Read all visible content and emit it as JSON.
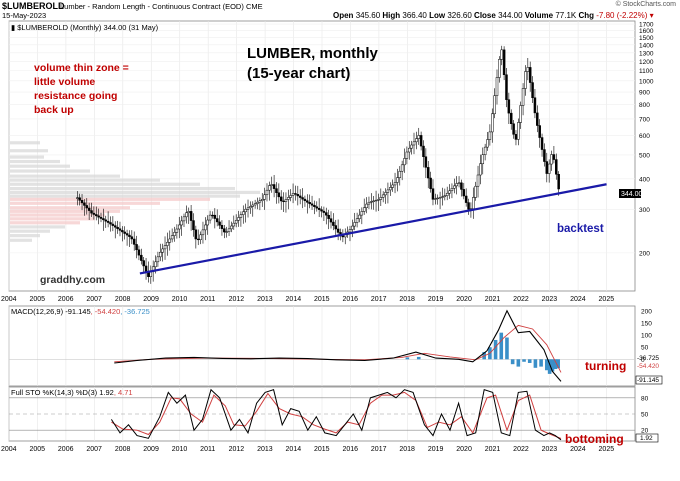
{
  "header": {
    "symbol": "$LUMBEROLD",
    "name": "Lumber - Random Length - Continuous Contract (EOD)",
    "exchange": "CME",
    "date": "15-May-2023",
    "legend": "$LUMBEROLD (Monthly) 344.00 (31 May)",
    "open_label": "Open",
    "open": "345.60",
    "high_label": "High",
    "high": "366.40",
    "low_label": "Low",
    "low": "326.60",
    "close_label": "Close",
    "close": "344.00",
    "volume_label": "Volume",
    "volume": "77.1K",
    "chg_label": "Chg",
    "chg": "-7.80 (-2.22%)",
    "site": "© StockCharts.com"
  },
  "annotations": {
    "title_line1": "LUMBER, monthly",
    "title_line2": "(15-year chart)",
    "volume_note": [
      "volume thin zone =",
      "little volume",
      "resistance going",
      "back up"
    ],
    "backtest": "backtest",
    "watermark": "graddhy.com",
    "turning": "turning",
    "bottoming": "bottoming"
  },
  "colors": {
    "trendline": "#1a1aa8",
    "annotation_red": "#c00000",
    "macd": "#000000",
    "signal": "#d04040",
    "histogram": "#3a8fc8",
    "stoch_k": "#000000",
    "stoch_d": "#d04040"
  },
  "chart_data": [
    {
      "type": "candlestick",
      "title": "$LUMBEROLD (Monthly) 344.00 (31 May)",
      "scale": "log",
      "ylim": [
        140,
        1750
      ],
      "yticks": [
        200,
        300,
        400,
        500,
        600,
        700,
        800,
        900,
        1000,
        1100,
        1200,
        1300,
        1400,
        1500,
        1600,
        1700
      ],
      "xticks": [
        "2004",
        "2005",
        "2006",
        "2007",
        "2008",
        "2009",
        "2010",
        "2011",
        "2012",
        "2013",
        "2014",
        "2015",
        "2016",
        "2017",
        "2018",
        "2019",
        "2020",
        "2021",
        "2022",
        "2023",
        "2024",
        "2025"
      ],
      "last_value_label": "344.00",
      "series_path": [
        [
          2006.4,
          335
        ],
        [
          2006.9,
          290
        ],
        [
          2007.5,
          265
        ],
        [
          2008.3,
          230
        ],
        [
          2008.9,
          160
        ],
        [
          2009.3,
          200
        ],
        [
          2009.9,
          250
        ],
        [
          2010.3,
          300
        ],
        [
          2010.6,
          220
        ],
        [
          2011.1,
          290
        ],
        [
          2011.6,
          240
        ],
        [
          2012.3,
          300
        ],
        [
          2012.9,
          330
        ],
        [
          2013.2,
          385
        ],
        [
          2013.6,
          320
        ],
        [
          2014.0,
          350
        ],
        [
          2014.5,
          320
        ],
        [
          2015.1,
          290
        ],
        [
          2015.7,
          230
        ],
        [
          2016.0,
          250
        ],
        [
          2016.6,
          320
        ],
        [
          2017.0,
          330
        ],
        [
          2017.6,
          390
        ],
        [
          2018.0,
          520
        ],
        [
          2018.4,
          600
        ],
        [
          2018.9,
          330
        ],
        [
          2019.3,
          340
        ],
        [
          2019.8,
          390
        ],
        [
          2020.2,
          290
        ],
        [
          2020.6,
          480
        ],
        [
          2020.9,
          620
        ],
        [
          2021.3,
          1400
        ],
        [
          2021.5,
          800
        ],
        [
          2021.8,
          560
        ],
        [
          2022.2,
          1200
        ],
        [
          2022.5,
          720
        ],
        [
          2022.9,
          420
        ],
        [
          2023.1,
          520
        ],
        [
          2023.35,
          344
        ]
      ],
      "trendline": [
        [
          2008.6,
          165
        ],
        [
          2025.0,
          380
        ]
      ],
      "volume_by_price_note": "horizontal volume-by-price bars at left"
    },
    {
      "type": "line",
      "title": "MACD(12,26,9) -91.145, -54.420, -36.725",
      "legend_parts": [
        "MACD(12,26,9)",
        "-91.145",
        ", -54.420",
        ", -36.725"
      ],
      "ylim": [
        -110,
        220
      ],
      "yticks": [
        200,
        150,
        100,
        50,
        0
      ],
      "right_labels": [
        "-36.725",
        "-54.420",
        "-91.145"
      ],
      "series": [
        {
          "name": "MACD",
          "points": [
            [
              2007.7,
              -15
            ],
            [
              2008.5,
              -5
            ],
            [
              2009.5,
              5
            ],
            [
              2010.5,
              8
            ],
            [
              2011.5,
              4
            ],
            [
              2012.5,
              2
            ],
            [
              2013.5,
              5
            ],
            [
              2014.5,
              3
            ],
            [
              2015.5,
              -2
            ],
            [
              2016.5,
              -5
            ],
            [
              2017.5,
              5
            ],
            [
              2018.3,
              30
            ],
            [
              2019.0,
              5
            ],
            [
              2019.8,
              0
            ],
            [
              2020.3,
              -10
            ],
            [
              2020.8,
              35
            ],
            [
              2021.2,
              120
            ],
            [
              2021.5,
              200
            ],
            [
              2021.9,
              110
            ],
            [
              2022.3,
              115
            ],
            [
              2022.8,
              40
            ],
            [
              2023.1,
              -50
            ],
            [
              2023.4,
              -91
            ]
          ]
        },
        {
          "name": "Signal",
          "points": [
            [
              2007.7,
              -10
            ],
            [
              2009.0,
              0
            ],
            [
              2011.0,
              5
            ],
            [
              2013.0,
              4
            ],
            [
              2015.0,
              0
            ],
            [
              2016.5,
              -2
            ],
            [
              2017.8,
              8
            ],
            [
              2018.6,
              25
            ],
            [
              2019.5,
              10
            ],
            [
              2020.4,
              -2
            ],
            [
              2020.9,
              25
            ],
            [
              2021.4,
              90
            ],
            [
              2021.9,
              140
            ],
            [
              2022.4,
              125
            ],
            [
              2022.9,
              60
            ],
            [
              2023.4,
              -54
            ]
          ]
        }
      ],
      "histogram": [
        [
          2018.0,
          8
        ],
        [
          2018.4,
          10
        ],
        [
          2020.7,
          30
        ],
        [
          2020.9,
          50
        ],
        [
          2021.1,
          80
        ],
        [
          2021.3,
          110
        ],
        [
          2021.5,
          90
        ],
        [
          2021.7,
          -20
        ],
        [
          2021.9,
          -30
        ],
        [
          2022.1,
          -10
        ],
        [
          2022.3,
          -15
        ],
        [
          2022.5,
          -35
        ],
        [
          2022.7,
          -30
        ],
        [
          2022.9,
          -45
        ],
        [
          2023.0,
          -60
        ],
        [
          2023.1,
          -50
        ],
        [
          2023.2,
          -40
        ],
        [
          2023.3,
          -37
        ]
      ]
    },
    {
      "type": "line",
      "title": "Full STO %K(14,3) %D(3) 1.92, 4.71",
      "legend_parts": [
        "Full STO %K(14,3) %D(3)",
        "1.92",
        ", 4.71"
      ],
      "ylim": [
        0,
        100
      ],
      "yticks": [
        80,
        50,
        20
      ],
      "right_label": "1.92",
      "series": [
        {
          "name": "%K",
          "points": [
            [
              2007.6,
              40
            ],
            [
              2007.9,
              15
            ],
            [
              2008.2,
              30
            ],
            [
              2008.5,
              10
            ],
            [
              2008.9,
              5
            ],
            [
              2009.3,
              45
            ],
            [
              2009.6,
              90
            ],
            [
              2009.9,
              70
            ],
            [
              2010.2,
              85
            ],
            [
              2010.5,
              20
            ],
            [
              2010.8,
              40
            ],
            [
              2011.1,
              95
            ],
            [
              2011.4,
              80
            ],
            [
              2011.8,
              20
            ],
            [
              2012.1,
              40
            ],
            [
              2012.4,
              15
            ],
            [
              2012.7,
              70
            ],
            [
              2013.0,
              90
            ],
            [
              2013.3,
              95
            ],
            [
              2013.6,
              30
            ],
            [
              2013.9,
              60
            ],
            [
              2014.2,
              55
            ],
            [
              2014.5,
              20
            ],
            [
              2014.8,
              45
            ],
            [
              2015.1,
              15
            ],
            [
              2015.5,
              10
            ],
            [
              2015.8,
              30
            ],
            [
              2016.1,
              50
            ],
            [
              2016.4,
              20
            ],
            [
              2016.7,
              80
            ],
            [
              2017.0,
              85
            ],
            [
              2017.3,
              90
            ],
            [
              2017.6,
              80
            ],
            [
              2017.9,
              95
            ],
            [
              2018.2,
              90
            ],
            [
              2018.6,
              30
            ],
            [
              2018.9,
              10
            ],
            [
              2019.2,
              50
            ],
            [
              2019.5,
              20
            ],
            [
              2019.8,
              70
            ],
            [
              2020.1,
              10
            ],
            [
              2020.4,
              15
            ],
            [
              2020.7,
              95
            ],
            [
              2021.0,
              90
            ],
            [
              2021.3,
              15
            ],
            [
              2021.6,
              10
            ],
            [
              2021.9,
              90
            ],
            [
              2022.2,
              92
            ],
            [
              2022.5,
              20
            ],
            [
              2022.8,
              10
            ],
            [
              2023.0,
              15
            ],
            [
              2023.2,
              10
            ],
            [
              2023.4,
              2
            ]
          ]
        },
        {
          "name": "%D",
          "points": [
            [
              2007.6,
              35
            ],
            [
              2008.0,
              22
            ],
            [
              2008.5,
              20
            ],
            [
              2008.9,
              12
            ],
            [
              2009.3,
              35
            ],
            [
              2009.7,
              80
            ],
            [
              2010.0,
              78
            ],
            [
              2010.4,
              50
            ],
            [
              2010.8,
              35
            ],
            [
              2011.2,
              85
            ],
            [
              2011.6,
              65
            ],
            [
              2011.9,
              30
            ],
            [
              2012.3,
              28
            ],
            [
              2012.7,
              55
            ],
            [
              2013.1,
              88
            ],
            [
              2013.5,
              60
            ],
            [
              2013.9,
              50
            ],
            [
              2014.3,
              45
            ],
            [
              2014.7,
              30
            ],
            [
              2015.1,
              22
            ],
            [
              2015.5,
              15
            ],
            [
              2015.9,
              35
            ],
            [
              2016.3,
              30
            ],
            [
              2016.7,
              70
            ],
            [
              2017.1,
              85
            ],
            [
              2017.5,
              85
            ],
            [
              2017.9,
              90
            ],
            [
              2018.3,
              75
            ],
            [
              2018.7,
              25
            ],
            [
              2019.1,
              35
            ],
            [
              2019.5,
              30
            ],
            [
              2019.9,
              45
            ],
            [
              2020.3,
              15
            ],
            [
              2020.8,
              80
            ],
            [
              2021.1,
              85
            ],
            [
              2021.5,
              20
            ],
            [
              2021.9,
              75
            ],
            [
              2022.3,
              85
            ],
            [
              2022.7,
              20
            ],
            [
              2023.0,
              13
            ],
            [
              2023.4,
              4.71
            ]
          ]
        }
      ]
    }
  ]
}
